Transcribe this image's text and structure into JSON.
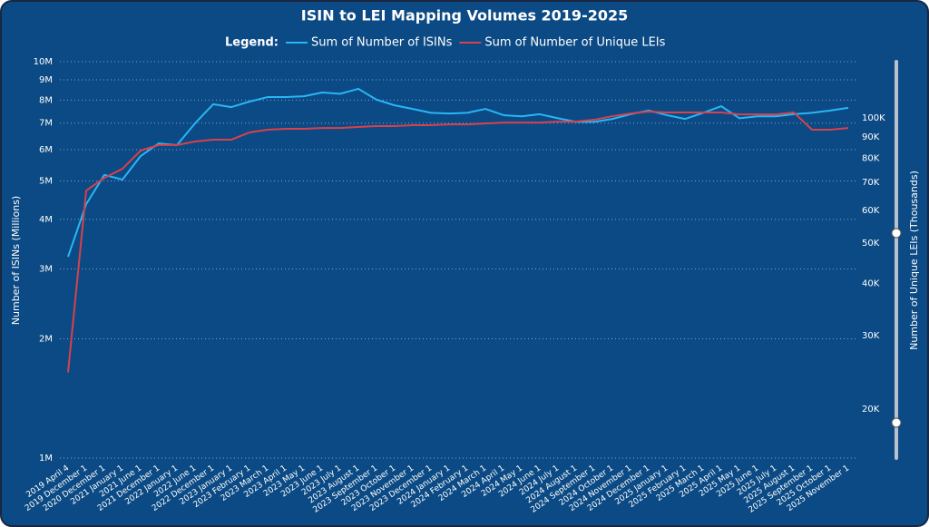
{
  "chart_data": {
    "type": "line",
    "title": "ISIN to LEI Mapping Volumes 2019-2025",
    "legend_title": "Legend:",
    "y_label": "Number of ISINs (Millions)",
    "y2_label": "Number of Unique LEIs (Thousands)",
    "log_scale": true,
    "grid": true,
    "legend": "top",
    "categories": [
      "2019 April 4",
      "2019 December 1",
      "2020 December 1",
      "2021 January 1",
      "2021 June 1",
      "2021 December 1",
      "2022 January 1",
      "2022 June 1",
      "2022 December 1",
      "2023 January 1",
      "2023 February 1",
      "2023 March 1",
      "2023 April 1",
      "2023 May 1",
      "2023 June 1",
      "2023 July 1",
      "2023 August 1",
      "2023 September 1",
      "2023 October 1",
      "2023 November 1",
      "2023 December 1",
      "2024 January 1",
      "2024 February 1",
      "2024 March 1",
      "2024 April 1",
      "2024 May 1",
      "2024 June 1",
      "2024 July 1",
      "2024 August 1",
      "2024 September 1",
      "2024 October 1",
      "2024 November 1",
      "2024 December 1",
      "2025 January 1",
      "2025 February 1",
      "2025 March 1",
      "2025 April 1",
      "2025 May 1",
      "2025 June 1",
      "2025 July 1",
      "2025 August 1",
      "2025 September 1",
      "2025 October 1",
      "2025 November 1"
    ],
    "series": [
      {
        "name": "Sum of Number of ISINs",
        "color": "#29b6f6",
        "axis": "y",
        "values": [
          3220000,
          4370000,
          5180000,
          5040000,
          5780000,
          6220000,
          6160000,
          6990000,
          7810000,
          7680000,
          7930000,
          8140000,
          8140000,
          8180000,
          8360000,
          8300000,
          8540000,
          8020000,
          7760000,
          7600000,
          7430000,
          7400000,
          7430000,
          7600000,
          7330000,
          7280000,
          7370000,
          7200000,
          7050000,
          7050000,
          7170000,
          7370000,
          7530000,
          7330000,
          7170000,
          7430000,
          7720000,
          7200000,
          7280000,
          7280000,
          7370000,
          7430000,
          7530000,
          7650000
        ]
      },
      {
        "name": "Sum of Number of Unique LEIs",
        "color": "#d9414b",
        "axis": "y2",
        "values": [
          24500,
          66900,
          71800,
          75500,
          83500,
          86100,
          86100,
          87800,
          88700,
          88700,
          92300,
          93700,
          94200,
          94200,
          94600,
          94600,
          95100,
          95600,
          95600,
          96100,
          96100,
          96500,
          96500,
          97000,
          97500,
          97500,
          97500,
          98000,
          98000,
          99000,
          101000,
          102500,
          103600,
          103100,
          103100,
          103100,
          103100,
          102000,
          102000,
          102000,
          103100,
          93700,
          93700,
          94600
        ]
      }
    ],
    "ylim": [
      1000000,
      10000000
    ],
    "yticks": [
      {
        "value": 1000000,
        "label": "1M"
      },
      {
        "value": 2000000,
        "label": "2M"
      },
      {
        "value": 3000000,
        "label": "3M"
      },
      {
        "value": 4000000,
        "label": "4M"
      },
      {
        "value": 5000000,
        "label": "5M"
      },
      {
        "value": 6000000,
        "label": "6M"
      },
      {
        "value": 7000000,
        "label": "7M"
      },
      {
        "value": 8000000,
        "label": "8M"
      },
      {
        "value": 9000000,
        "label": "9M"
      },
      {
        "value": 10000000,
        "label": "10M"
      }
    ],
    "y2lim": [
      15250,
      136500
    ],
    "y2ticks": [
      {
        "value": 20000,
        "label": "20K"
      },
      {
        "value": 30000,
        "label": "30K"
      },
      {
        "value": 40000,
        "label": "40K"
      },
      {
        "value": 50000,
        "label": "50K"
      },
      {
        "value": 60000,
        "label": "60K"
      },
      {
        "value": 70000,
        "label": "70K"
      },
      {
        "value": 80000,
        "label": "80K"
      },
      {
        "value": 90000,
        "label": "90K"
      },
      {
        "value": 100000,
        "label": "100K"
      }
    ]
  }
}
